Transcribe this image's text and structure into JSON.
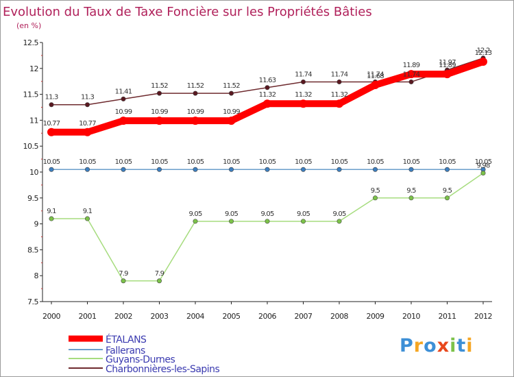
{
  "chart_data": {
    "type": "line",
    "title": "Evolution du Taux de Taxe Foncière sur les Propriétés Bâties",
    "subtitle": "(en %)",
    "ylim": [
      7.5,
      12.5
    ],
    "yticks": [
      7.5,
      8,
      8.5,
      9,
      9.5,
      10,
      10.5,
      11,
      11.5,
      12,
      12.5
    ],
    "ytick_labels": [
      "7.5",
      "8",
      "8.5",
      "9",
      "9.5",
      "10",
      "10.5",
      "11",
      "11.5",
      "12",
      "12.5"
    ],
    "x": [
      "2000",
      "2001",
      "2002",
      "2003",
      "2004",
      "2005",
      "2006",
      "2007",
      "2008",
      "2009",
      "2010",
      "2011",
      "2012"
    ],
    "legend_position": "bottom-left",
    "series": [
      {
        "name": "Charbonnières-les-Sapins",
        "color": "#6e2a2e",
        "marker": "#5a1820",
        "values": [
          11.3,
          11.3,
          11.41,
          11.52,
          11.52,
          11.52,
          11.63,
          11.74,
          11.74,
          11.74,
          11.74,
          11.97,
          12.2
        ],
        "labels": [
          "11.3",
          "11.3",
          "11.41",
          "11.52",
          "11.52",
          "11.52",
          "11.63",
          "11.74",
          "11.74",
          "11.74",
          "11.74",
          "11.97",
          "12.2"
        ]
      },
      {
        "name": "Fallerans",
        "color": "#6a9ecb",
        "marker": "#3d7fc0",
        "values": [
          10.05,
          10.05,
          10.05,
          10.05,
          10.05,
          10.05,
          10.05,
          10.05,
          10.05,
          10.05,
          10.05,
          10.05,
          10.05
        ],
        "labels": [
          "10.05",
          "10.05",
          "10.05",
          "10.05",
          "10.05",
          "10.05",
          "10.05",
          "10.05",
          "10.05",
          "10.05",
          "10.05",
          "10.05",
          "10.05"
        ]
      },
      {
        "name": "Guyans-Durnes",
        "color": "#a6dc7e",
        "marker": "#7cc24a",
        "values": [
          9.1,
          9.1,
          7.9,
          7.9,
          9.05,
          9.05,
          9.05,
          9.05,
          9.05,
          9.5,
          9.5,
          9.5,
          9.98
        ],
        "labels": [
          "9.1",
          "9.1",
          "7.9",
          "7.9",
          "9.05",
          "9.05",
          "9.05",
          "9.05",
          "9.05",
          "9.5",
          "9.5",
          "9.5",
          "9.98"
        ]
      },
      {
        "name": "ÉTALANS",
        "color": "#ff0000",
        "marker": "#ff0000",
        "values": [
          10.77,
          10.77,
          10.99,
          10.99,
          10.99,
          10.99,
          11.32,
          11.32,
          11.32,
          11.68,
          11.89,
          11.89,
          12.13
        ],
        "labels": [
          "10.77",
          "10.77",
          "10.99",
          "10.99",
          "10.99",
          "10.99",
          "11.32",
          "11.32",
          "11.32",
          "11.68",
          "11.89",
          "11.89",
          "12.13"
        ]
      }
    ],
    "legend": [
      "ÉTALANS",
      "Fallerans",
      "Guyans-Durnes",
      "Charbonnières-les-Sapins"
    ]
  },
  "branding": {
    "logo_text": "Proxiti",
    "logo_colors": [
      "#3d8fd6",
      "#f5a623",
      "#3d8fd6",
      "#e8481c",
      "#7cc24a",
      "#3d8fd6",
      "#f5a623"
    ]
  },
  "colors": {
    "title": "#b0205a",
    "axis": "#222222",
    "tick_label": "#222222",
    "legend_text": "#3a3ab0"
  }
}
